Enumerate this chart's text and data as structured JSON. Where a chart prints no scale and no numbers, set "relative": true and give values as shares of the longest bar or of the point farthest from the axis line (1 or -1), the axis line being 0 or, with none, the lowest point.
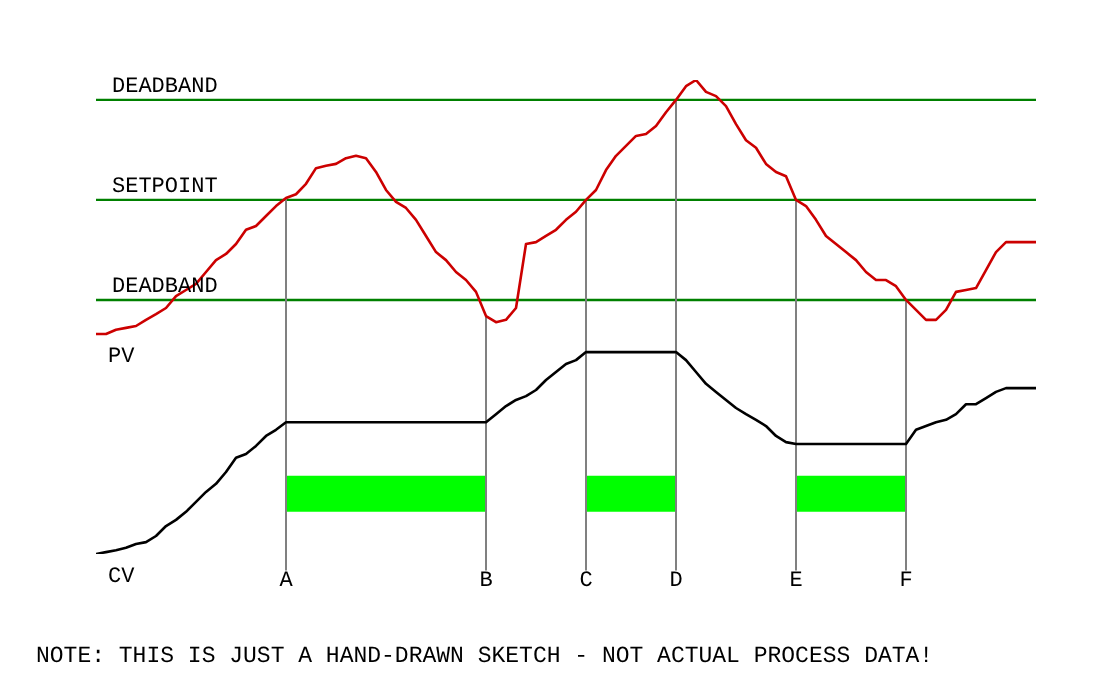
{
  "chart_data": {
    "type": "line",
    "relative": true,
    "marker": "none",
    "categories": [
      null,
      null,
      null,
      null,
      null,
      null,
      null,
      null,
      null,
      null,
      null,
      null,
      null,
      null,
      null,
      null,
      null,
      null,
      null,
      "A",
      null,
      null,
      null,
      null,
      null,
      null,
      null,
      null,
      null,
      null,
      null,
      null,
      null,
      null,
      null,
      null,
      null,
      null,
      null,
      "B",
      null,
      null,
      null,
      null,
      null,
      null,
      null,
      null,
      null,
      "C",
      null,
      null,
      null,
      null,
      null,
      null,
      null,
      null,
      "D",
      null,
      null,
      null,
      null,
      null,
      null,
      null,
      null,
      null,
      null,
      null,
      "E",
      null,
      null,
      null,
      null,
      null,
      null,
      null,
      null,
      null,
      null,
      "F",
      null,
      null,
      null,
      null,
      null,
      null,
      null,
      null,
      null,
      null,
      null,
      null,
      null
    ],
    "series": [
      {
        "name": "PV",
        "color": "#cc0000",
        "values": [
          0.464,
          0.464,
          0.473,
          0.477,
          0.481,
          0.494,
          0.506,
          0.519,
          0.544,
          0.557,
          0.57,
          0.595,
          0.62,
          0.633,
          0.654,
          0.684,
          0.692,
          0.713,
          0.734,
          0.751,
          0.759,
          0.781,
          0.814,
          0.819,
          0.823,
          0.835,
          0.84,
          0.835,
          0.806,
          0.768,
          0.743,
          0.73,
          0.705,
          0.671,
          0.637,
          0.62,
          0.595,
          0.578,
          0.553,
          0.502,
          0.489,
          0.494,
          0.519,
          0.654,
          0.658,
          0.671,
          0.684,
          0.705,
          0.722,
          0.747,
          0.768,
          0.81,
          0.84,
          0.861,
          0.882,
          0.886,
          0.903,
          0.932,
          0.958,
          0.987,
          1,
          0.975,
          0.966,
          0.945,
          0.907,
          0.873,
          0.857,
          0.823,
          0.806,
          0.797,
          0.747,
          0.734,
          0.705,
          0.671,
          0.654,
          0.637,
          0.62,
          0.595,
          0.578,
          0.578,
          0.565,
          0.536,
          0.515,
          0.494,
          0.494,
          0.515,
          0.553,
          0.557,
          0.561,
          0.599,
          0.637,
          0.658,
          0.658,
          0.658,
          0.658
        ]
      },
      {
        "name": "CV",
        "color": "#000000",
        "values": [
          0,
          0.004,
          0.008,
          0.013,
          0.021,
          0.025,
          0.038,
          0.059,
          0.072,
          0.089,
          0.11,
          0.131,
          0.148,
          0.173,
          0.203,
          0.211,
          0.228,
          0.249,
          0.262,
          0.278,
          0.278,
          0.278,
          0.278,
          0.278,
          0.278,
          0.278,
          0.278,
          0.278,
          0.278,
          0.278,
          0.278,
          0.278,
          0.278,
          0.278,
          0.278,
          0.278,
          0.278,
          0.278,
          0.278,
          0.278,
          0.295,
          0.312,
          0.325,
          0.333,
          0.346,
          0.367,
          0.384,
          0.401,
          0.409,
          0.426,
          0.426,
          0.426,
          0.426,
          0.426,
          0.426,
          0.426,
          0.426,
          0.426,
          0.426,
          0.409,
          0.384,
          0.359,
          0.342,
          0.325,
          0.308,
          0.295,
          0.283,
          0.27,
          0.249,
          0.236,
          0.232,
          0.232,
          0.232,
          0.232,
          0.232,
          0.232,
          0.232,
          0.232,
          0.232,
          0.232,
          0.232,
          0.232,
          0.262,
          0.27,
          0.278,
          0.283,
          0.295,
          0.316,
          0.316,
          0.329,
          0.342,
          0.35,
          0.35,
          0.35,
          0.35
        ]
      }
    ],
    "ref_lines": [
      {
        "axis": "y",
        "value": 0.958,
        "label": "DEADBAND",
        "color": "#008000"
      },
      {
        "axis": "y",
        "value": 0.747,
        "label": "SETPOINT",
        "color": "#008000"
      },
      {
        "axis": "y",
        "value": 0.536,
        "label": "DEADBAND",
        "color": "#008000"
      },
      {
        "axis": "x",
        "value": "A",
        "color": "#808080"
      },
      {
        "axis": "x",
        "value": "B",
        "color": "#808080"
      },
      {
        "axis": "x",
        "value": "C",
        "color": "#808080"
      },
      {
        "axis": "x",
        "value": "D",
        "color": "#808080"
      },
      {
        "axis": "x",
        "value": "E",
        "color": "#808080"
      },
      {
        "axis": "x",
        "value": "F",
        "color": "#808080"
      }
    ],
    "bands": [
      {
        "axis": "x",
        "from": "A",
        "to": "B",
        "color": "#00ff00"
      },
      {
        "axis": "x",
        "from": "C",
        "to": "D",
        "color": "#00ff00"
      },
      {
        "axis": "x",
        "from": "E",
        "to": "F",
        "color": "#00ff00"
      }
    ],
    "annotations": [
      "NOTE: THIS IS JUST A HAND-DRAWN SKETCH - NOT ACTUAL PROCESS DATA!"
    ]
  }
}
